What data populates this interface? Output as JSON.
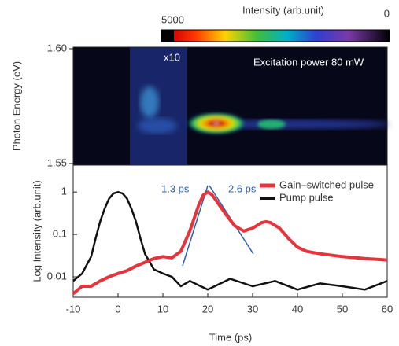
{
  "chart_data": [
    {
      "type": "image",
      "colorbar": {
        "label": "Intensity (arb.unit)",
        "ticks": [
          5000,
          0
        ]
      },
      "ylabel": "Photon Energy (eV)",
      "ylim": [
        1.55,
        1.6
      ],
      "yticks": [
        {
          "value": 1.6,
          "label": "1.60"
        },
        {
          "value": 1.55,
          "label": "1.55"
        }
      ],
      "annotations": [
        "x10",
        "Excitation power 80 mW"
      ]
    },
    {
      "type": "line",
      "xlabel": "Time (ps)",
      "ylabel": "Log Intensity (arb.unit)",
      "log_y": true,
      "xlim": [
        -10,
        60
      ],
      "xticks": [
        -10,
        0,
        10,
        20,
        30,
        40,
        50,
        60
      ],
      "ylim": [
        0.0033,
        4.3
      ],
      "yticks": [
        1,
        0.1,
        0.01
      ],
      "legend": "upper right",
      "annotations": [
        "1.3 ps",
        "2.6 ps"
      ],
      "series": [
        {
          "name": "Gain–switched pulse",
          "color": "#e8333a",
          "x": [
            -10,
            -8,
            -6,
            -4,
            -2,
            0,
            2,
            4,
            6,
            8,
            10,
            12,
            14,
            16,
            18,
            19,
            20,
            21,
            22,
            24,
            26,
            28,
            30,
            32,
            33,
            34,
            36,
            38,
            40,
            42,
            45,
            50,
            55,
            60
          ],
          "values": [
            0.004,
            0.006,
            0.006,
            0.008,
            0.01,
            0.012,
            0.014,
            0.018,
            0.022,
            0.027,
            0.03,
            0.028,
            0.04,
            0.12,
            0.5,
            0.85,
            1.0,
            0.85,
            0.6,
            0.3,
            0.16,
            0.12,
            0.14,
            0.19,
            0.2,
            0.19,
            0.14,
            0.08,
            0.05,
            0.04,
            0.035,
            0.03,
            0.027,
            0.025
          ]
        },
        {
          "name": "Pump pulse",
          "color": "#111111",
          "x": [
            -10,
            -8,
            -6,
            -5,
            -4,
            -3,
            -2,
            -1,
            0,
            1,
            2,
            3,
            4,
            5,
            6,
            8,
            10,
            12,
            14,
            16,
            20,
            25,
            30,
            35,
            40,
            45,
            50,
            55,
            60
          ],
          "values": [
            0.008,
            0.012,
            0.03,
            0.08,
            0.2,
            0.4,
            0.7,
            0.93,
            1,
            0.93,
            0.7,
            0.4,
            0.2,
            0.08,
            0.035,
            0.015,
            0.012,
            0.01,
            0.006,
            0.008,
            0.005,
            0.009,
            0.006,
            0.008,
            0.005,
            0.007,
            0.006,
            0.005,
            0.008
          ]
        }
      ]
    }
  ]
}
